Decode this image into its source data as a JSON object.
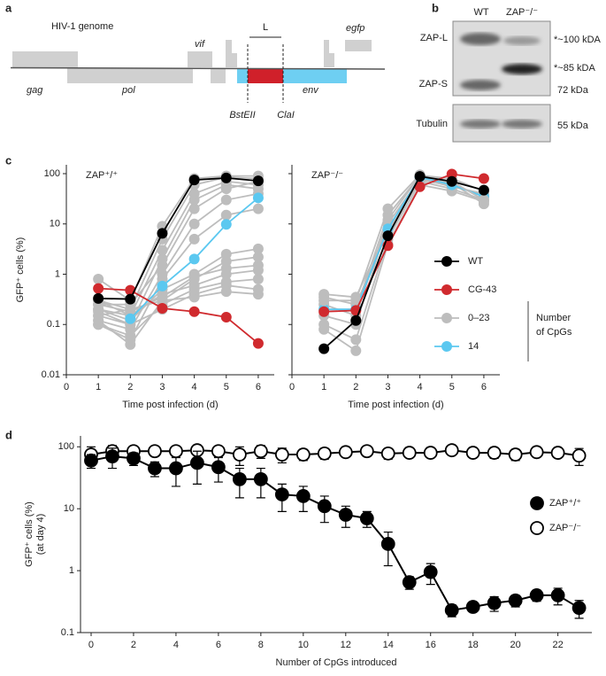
{
  "figure": {
    "panel_labels": [
      "a",
      "b",
      "c",
      "d"
    ]
  },
  "diagram": {
    "title": "HIV-1 genome",
    "genes": [
      "gag",
      "pol",
      "vif",
      "env",
      "egfp"
    ],
    "region": "L",
    "sites": [
      "BstEII",
      "ClaI"
    ]
  },
  "blot": {
    "lanes": [
      "WT",
      "ZAP⁻/⁻"
    ],
    "bands": [
      "ZAP-L",
      "ZAP-S",
      "Tubulin"
    ],
    "sizes": [
      "*~100 kDA",
      "*~85 kDA",
      "72 kDa",
      "55 kDa"
    ]
  },
  "chart_data": [
    {
      "type": "line",
      "annotation": "ZAP⁺/⁺",
      "xlabel": "Time post infection (d)",
      "ylabel": "GFP⁺ cells (%)",
      "x": [
        1,
        2,
        3,
        4,
        5,
        6
      ],
      "xlim": [
        0,
        6.5
      ],
      "xticks": [
        0,
        1,
        2,
        3,
        4,
        5,
        6
      ],
      "ylim": [
        0.01,
        150
      ],
      "yticks": [
        0.01,
        0.1,
        1,
        10,
        100
      ],
      "ylog": true,
      "series": [
        {
          "name": "WT",
          "color": "#000000",
          "values": [
            0.33,
            0.32,
            6.5,
            75,
            82,
            72
          ]
        },
        {
          "name": "CG-43",
          "color": "#d02a2e",
          "values": [
            0.52,
            0.48,
            0.21,
            0.18,
            0.14,
            0.042
          ]
        },
        {
          "name": "0–23",
          "color": "#bdbdbd",
          "values": [
            0.8,
            0.3,
            9,
            80,
            90,
            90
          ]
        },
        {
          "name": "14",
          "color": "#5bc8f0",
          "values": [
            null,
            0.13,
            0.58,
            2.0,
            9.8,
            33
          ]
        },
        {
          "color": "#bdbdbd",
          "values": [
            0.3,
            0.2,
            5,
            60,
            85,
            80
          ]
        },
        {
          "color": "#bdbdbd",
          "values": [
            0.2,
            0.15,
            3,
            40,
            70,
            60
          ]
        },
        {
          "color": "#bdbdbd",
          "values": [
            0.15,
            0.1,
            2,
            30,
            60,
            50
          ]
        },
        {
          "color": "#bdbdbd",
          "values": [
            0.25,
            0.25,
            1.5,
            20,
            50,
            70
          ]
        },
        {
          "color": "#bdbdbd",
          "values": [
            0.12,
            0.08,
            1,
            10,
            30,
            40
          ]
        },
        {
          "color": "#bdbdbd",
          "values": [
            0.1,
            0.05,
            0.8,
            5,
            15,
            20
          ]
        },
        {
          "color": "#bdbdbd",
          "values": [
            0.2,
            0.12,
            0.5,
            1,
            2.5,
            3.2
          ]
        },
        {
          "color": "#bdbdbd",
          "values": [
            0.15,
            0.2,
            0.3,
            0.8,
            1.8,
            2.2
          ]
        },
        {
          "color": "#bdbdbd",
          "values": [
            0.3,
            0.15,
            0.4,
            0.6,
            1,
            1.2
          ]
        },
        {
          "color": "#bdbdbd",
          "values": [
            0.1,
            0.06,
            0.25,
            0.5,
            0.7,
            0.8
          ]
        },
        {
          "color": "#bdbdbd",
          "values": [
            0.18,
            0.1,
            0.2,
            0.4,
            0.6,
            0.5
          ]
        },
        {
          "color": "#bdbdbd",
          "values": [
            0.12,
            0.04,
            0.3,
            0.35,
            0.45,
            0.4
          ]
        },
        {
          "color": "#bdbdbd",
          "values": [
            0.25,
            0.18,
            0.35,
            0.9,
            1.3,
            1.5
          ]
        }
      ]
    },
    {
      "type": "line",
      "annotation": "ZAP⁻/⁻",
      "xlabel": "Time post infection (d)",
      "x": [
        1,
        2,
        3,
        4,
        5,
        6
      ],
      "xlim": [
        0,
        6.5
      ],
      "xticks": [
        0,
        1,
        2,
        3,
        4,
        5,
        6
      ],
      "ylim": [
        0.01,
        150
      ],
      "ylog": true,
      "legend": "right",
      "legend_title": [
        "Number",
        "of CpGs"
      ],
      "series": [
        {
          "name": "WT",
          "color": "#000000",
          "values": [
            0.033,
            0.12,
            5.8,
            88,
            70,
            47
          ]
        },
        {
          "name": "CG-43",
          "color": "#d02a2e",
          "values": [
            0.18,
            0.19,
            3.7,
            55,
            98,
            80
          ]
        },
        {
          "name": "0–23",
          "color": "#bdbdbd",
          "values": [
            0.3,
            0.3,
            20,
            95,
            70,
            30
          ]
        },
        {
          "name": "14",
          "color": "#5bc8f0",
          "values": [
            0.2,
            0.2,
            8,
            85,
            60,
            35
          ]
        },
        {
          "color": "#bdbdbd",
          "values": [
            0.2,
            0.2,
            15,
            90,
            60,
            35
          ]
        },
        {
          "color": "#bdbdbd",
          "values": [
            0.15,
            0.1,
            10,
            80,
            55,
            40
          ]
        },
        {
          "color": "#bdbdbd",
          "values": [
            0.4,
            0.35,
            8,
            85,
            65,
            25
          ]
        },
        {
          "color": "#bdbdbd",
          "values": [
            0.1,
            0.05,
            5,
            70,
            50,
            30
          ]
        },
        {
          "color": "#bdbdbd",
          "values": [
            0.25,
            0.15,
            12,
            92,
            80,
            45
          ]
        },
        {
          "color": "#bdbdbd",
          "values": [
            0.08,
            0.03,
            4,
            60,
            45,
            28
          ]
        },
        {
          "color": "#bdbdbd",
          "values": [
            0.35,
            0.25,
            7,
            75,
            58,
            38
          ]
        }
      ]
    },
    {
      "type": "errorline",
      "xlabel": "Number of CpGs introduced",
      "ylabel": [
        "GFP⁺ cells (%)",
        "(at day 4)"
      ],
      "x": [
        0,
        1,
        2,
        3,
        4,
        5,
        6,
        7,
        8,
        9,
        10,
        11,
        12,
        13,
        14,
        15,
        16,
        17,
        18,
        19,
        20,
        21,
        22,
        23
      ],
      "xlim": [
        -0.5,
        23.6
      ],
      "xticks": [
        0,
        2,
        4,
        6,
        8,
        10,
        12,
        14,
        16,
        18,
        20,
        22
      ],
      "ylim": [
        0.1,
        150
      ],
      "yticks": [
        0.1,
        1,
        10,
        100
      ],
      "ylog": true,
      "legend": "right",
      "series": [
        {
          "name": "ZAP⁺/⁺",
          "color": "#000000",
          "fill": "#000000",
          "values": [
            60,
            70,
            65,
            45,
            45,
            55,
            47,
            30,
            30,
            17,
            16,
            11,
            8,
            7,
            2.7,
            0.65,
            0.95,
            0.23,
            0.26,
            0.3,
            0.33,
            0.4,
            0.4,
            0.25
          ],
          "errors": [
            15,
            25,
            15,
            12,
            22,
            30,
            20,
            15,
            15,
            8,
            7,
            5,
            3,
            2,
            1.5,
            0.15,
            0.35,
            0.05,
            0.03,
            0.08,
            0.07,
            0.08,
            0.12,
            0.08
          ]
        },
        {
          "name": "ZAP⁻/⁻",
          "color": "#000000",
          "fill": "#ffffff",
          "values": [
            75,
            85,
            85,
            85,
            85,
            88,
            85,
            75,
            85,
            75,
            75,
            78,
            82,
            85,
            78,
            80,
            80,
            88,
            80,
            80,
            75,
            82,
            80,
            72
          ],
          "errors": [
            25,
            20,
            10,
            10,
            10,
            10,
            15,
            25,
            20,
            20,
            15,
            15,
            10,
            10,
            15,
            10,
            10,
            10,
            10,
            15,
            15,
            10,
            10,
            22
          ]
        }
      ]
    }
  ]
}
